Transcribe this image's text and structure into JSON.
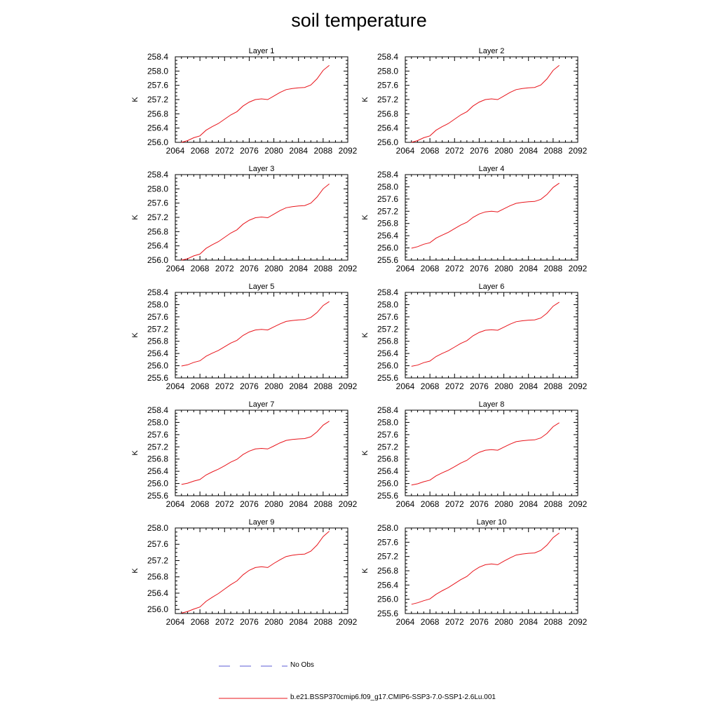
{
  "title": "soil temperature",
  "colors": {
    "model": "#e8141b",
    "obs": "#5b5bd6",
    "axis": "#000000"
  },
  "legend": {
    "obs_label": "No Obs",
    "model_label": "b.e21.BSSP370cmip6.f09_g17.CMIP6-SSP3-7.0-SSP1-2.6Lu.001"
  },
  "chart_data": [
    {
      "type": "line",
      "title": "Layer 1",
      "xlabel": "",
      "ylabel": "K",
      "xlim": [
        2064,
        2092
      ],
      "ylim": [
        256.0,
        258.4
      ],
      "xticks": [
        2064,
        2068,
        2072,
        2076,
        2080,
        2084,
        2088,
        2092
      ],
      "yticks": [
        256.0,
        256.4,
        256.8,
        257.2,
        257.6,
        258.0,
        258.4
      ],
      "ytick_labels": [
        "256.0",
        "256.4",
        "256.8",
        "257.2",
        "257.6",
        "258.0",
        "258.4"
      ],
      "series": [
        {
          "name": "b.e21.BSSP370cmip6.f09_g17.CMIP6-SSP3-7.0-SSP1-2.6Lu.001",
          "x": [
            2065,
            2066,
            2067,
            2068,
            2069,
            2070,
            2071,
            2072,
            2073,
            2074,
            2075,
            2076,
            2077,
            2078,
            2079,
            2080,
            2081,
            2082,
            2083,
            2084,
            2085,
            2086,
            2087,
            2088,
            2089
          ],
          "y": [
            256.0,
            256.05,
            256.13,
            256.18,
            256.34,
            256.44,
            256.53,
            256.65,
            256.77,
            256.86,
            257.02,
            257.13,
            257.2,
            257.22,
            257.2,
            257.3,
            257.4,
            257.48,
            257.51,
            257.53,
            257.54,
            257.61,
            257.78,
            258.02,
            258.16
          ]
        }
      ]
    },
    {
      "type": "line",
      "title": "Layer 2",
      "xlabel": "",
      "ylabel": "K",
      "xlim": [
        2064,
        2092
      ],
      "ylim": [
        256.0,
        258.4
      ],
      "xticks": [
        2064,
        2068,
        2072,
        2076,
        2080,
        2084,
        2088,
        2092
      ],
      "yticks": [
        256.0,
        256.4,
        256.8,
        257.2,
        257.6,
        258.0,
        258.4
      ],
      "ytick_labels": [
        "256.0",
        "256.4",
        "256.8",
        "257.2",
        "257.6",
        "258.0",
        "258.4"
      ],
      "series": [
        {
          "name": "b.e21.BSSP370cmip6.f09_g17.CMIP6-SSP3-7.0-SSP1-2.6Lu.001",
          "x": [
            2065,
            2066,
            2067,
            2068,
            2069,
            2070,
            2071,
            2072,
            2073,
            2074,
            2075,
            2076,
            2077,
            2078,
            2079,
            2080,
            2081,
            2082,
            2083,
            2084,
            2085,
            2086,
            2087,
            2088,
            2089
          ],
          "y": [
            256.0,
            256.05,
            256.13,
            256.18,
            256.34,
            256.44,
            256.53,
            256.65,
            256.77,
            256.86,
            257.02,
            257.13,
            257.2,
            257.22,
            257.2,
            257.3,
            257.4,
            257.48,
            257.51,
            257.53,
            257.54,
            257.61,
            257.78,
            258.02,
            258.16
          ]
        }
      ]
    },
    {
      "type": "line",
      "title": "Layer 3",
      "xlabel": "",
      "ylabel": "K",
      "xlim": [
        2064,
        2092
      ],
      "ylim": [
        256.0,
        258.4
      ],
      "xticks": [
        2064,
        2068,
        2072,
        2076,
        2080,
        2084,
        2088,
        2092
      ],
      "yticks": [
        256.0,
        256.4,
        256.8,
        257.2,
        257.6,
        258.0,
        258.4
      ],
      "ytick_labels": [
        "256.0",
        "256.4",
        "256.8",
        "257.2",
        "257.6",
        "258.0",
        "258.4"
      ],
      "series": [
        {
          "name": "b.e21.BSSP370cmip6.f09_g17.CMIP6-SSP3-7.0-SSP1-2.6Lu.001",
          "x": [
            2065,
            2066,
            2067,
            2068,
            2069,
            2070,
            2071,
            2072,
            2073,
            2074,
            2075,
            2076,
            2077,
            2078,
            2079,
            2080,
            2081,
            2082,
            2083,
            2084,
            2085,
            2086,
            2087,
            2088,
            2089
          ],
          "y": [
            256.0,
            256.04,
            256.12,
            256.17,
            256.33,
            256.43,
            256.52,
            256.64,
            256.76,
            256.85,
            257.01,
            257.12,
            257.19,
            257.21,
            257.19,
            257.29,
            257.39,
            257.47,
            257.5,
            257.52,
            257.53,
            257.6,
            257.77,
            258.0,
            258.14
          ]
        }
      ]
    },
    {
      "type": "line",
      "title": "Layer 4",
      "xlabel": "",
      "ylabel": "K",
      "xlim": [
        2064,
        2092
      ],
      "ylim": [
        255.6,
        258.4
      ],
      "xticks": [
        2064,
        2068,
        2072,
        2076,
        2080,
        2084,
        2088,
        2092
      ],
      "yticks": [
        255.6,
        256.0,
        256.4,
        256.8,
        257.2,
        257.6,
        258.0,
        258.4
      ],
      "ytick_labels": [
        "255.6",
        "256.0",
        "256.4",
        "256.8",
        "257.2",
        "257.6",
        "258.0",
        "258.4"
      ],
      "series": [
        {
          "name": "b.e21.BSSP370cmip6.f09_g17.CMIP6-SSP3-7.0-SSP1-2.6Lu.001",
          "x": [
            2065,
            2066,
            2067,
            2068,
            2069,
            2070,
            2071,
            2072,
            2073,
            2074,
            2075,
            2076,
            2077,
            2078,
            2079,
            2080,
            2081,
            2082,
            2083,
            2084,
            2085,
            2086,
            2087,
            2088,
            2089
          ],
          "y": [
            255.99,
            256.04,
            256.12,
            256.17,
            256.32,
            256.42,
            256.51,
            256.63,
            256.75,
            256.84,
            257.0,
            257.11,
            257.18,
            257.2,
            257.18,
            257.28,
            257.38,
            257.46,
            257.49,
            257.51,
            257.52,
            257.59,
            257.75,
            257.98,
            258.12
          ]
        }
      ]
    },
    {
      "type": "line",
      "title": "Layer 5",
      "xlabel": "",
      "ylabel": "K",
      "xlim": [
        2064,
        2092
      ],
      "ylim": [
        255.6,
        258.4
      ],
      "xticks": [
        2064,
        2068,
        2072,
        2076,
        2080,
        2084,
        2088,
        2092
      ],
      "yticks": [
        255.6,
        256.0,
        256.4,
        256.8,
        257.2,
        257.6,
        258.0,
        258.4
      ],
      "ytick_labels": [
        "255.6",
        "256.0",
        "256.4",
        "256.8",
        "257.2",
        "257.6",
        "258.0",
        "258.4"
      ],
      "series": [
        {
          "name": "b.e21.BSSP370cmip6.f09_g17.CMIP6-SSP3-7.0-SSP1-2.6Lu.001",
          "x": [
            2065,
            2066,
            2067,
            2068,
            2069,
            2070,
            2071,
            2072,
            2073,
            2074,
            2075,
            2076,
            2077,
            2078,
            2079,
            2080,
            2081,
            2082,
            2083,
            2084,
            2085,
            2086,
            2087,
            2088,
            2089
          ],
          "y": [
            255.99,
            256.03,
            256.11,
            256.16,
            256.31,
            256.41,
            256.5,
            256.62,
            256.74,
            256.83,
            256.99,
            257.1,
            257.17,
            257.19,
            257.17,
            257.27,
            257.37,
            257.45,
            257.48,
            257.5,
            257.51,
            257.58,
            257.74,
            257.97,
            258.1
          ]
        }
      ]
    },
    {
      "type": "line",
      "title": "Layer 6",
      "xlabel": "",
      "ylabel": "K",
      "xlim": [
        2064,
        2092
      ],
      "ylim": [
        255.6,
        258.4
      ],
      "xticks": [
        2064,
        2068,
        2072,
        2076,
        2080,
        2084,
        2088,
        2092
      ],
      "yticks": [
        255.6,
        256.0,
        256.4,
        256.8,
        257.2,
        257.6,
        258.0,
        258.4
      ],
      "ytick_labels": [
        "255.6",
        "256.0",
        "256.4",
        "256.8",
        "257.2",
        "257.6",
        "258.0",
        "258.4"
      ],
      "series": [
        {
          "name": "b.e21.BSSP370cmip6.f09_g17.CMIP6-SSP3-7.0-SSP1-2.6Lu.001",
          "x": [
            2065,
            2066,
            2067,
            2068,
            2069,
            2070,
            2071,
            2072,
            2073,
            2074,
            2075,
            2076,
            2077,
            2078,
            2079,
            2080,
            2081,
            2082,
            2083,
            2084,
            2085,
            2086,
            2087,
            2088,
            2089
          ],
          "y": [
            255.98,
            256.02,
            256.1,
            256.15,
            256.3,
            256.4,
            256.49,
            256.61,
            256.73,
            256.82,
            256.98,
            257.09,
            257.16,
            257.18,
            257.16,
            257.26,
            257.36,
            257.44,
            257.47,
            257.49,
            257.5,
            257.56,
            257.72,
            257.95,
            258.08
          ]
        }
      ]
    },
    {
      "type": "line",
      "title": "Layer 7",
      "xlabel": "",
      "ylabel": "K",
      "xlim": [
        2064,
        2092
      ],
      "ylim": [
        255.6,
        258.4
      ],
      "xticks": [
        2064,
        2068,
        2072,
        2076,
        2080,
        2084,
        2088,
        2092
      ],
      "yticks": [
        255.6,
        256.0,
        256.4,
        256.8,
        257.2,
        257.6,
        258.0,
        258.4
      ],
      "ytick_labels": [
        "255.6",
        "256.0",
        "256.4",
        "256.8",
        "257.2",
        "257.6",
        "258.0",
        "258.4"
      ],
      "series": [
        {
          "name": "b.e21.BSSP370cmip6.f09_g17.CMIP6-SSP3-7.0-SSP1-2.6Lu.001",
          "x": [
            2065,
            2066,
            2067,
            2068,
            2069,
            2070,
            2071,
            2072,
            2073,
            2074,
            2075,
            2076,
            2077,
            2078,
            2079,
            2080,
            2081,
            2082,
            2083,
            2084,
            2085,
            2086,
            2087,
            2088,
            2089
          ],
          "y": [
            255.97,
            256.01,
            256.08,
            256.13,
            256.28,
            256.38,
            256.47,
            256.58,
            256.7,
            256.79,
            256.95,
            257.06,
            257.13,
            257.15,
            257.13,
            257.23,
            257.33,
            257.41,
            257.44,
            257.46,
            257.47,
            257.53,
            257.69,
            257.91,
            258.04
          ]
        }
      ]
    },
    {
      "type": "line",
      "title": "Layer 8",
      "xlabel": "",
      "ylabel": "K",
      "xlim": [
        2064,
        2092
      ],
      "ylim": [
        255.6,
        258.4
      ],
      "xticks": [
        2064,
        2068,
        2072,
        2076,
        2080,
        2084,
        2088,
        2092
      ],
      "yticks": [
        255.6,
        256.0,
        256.4,
        256.8,
        257.2,
        257.6,
        258.0,
        258.4
      ],
      "ytick_labels": [
        "255.6",
        "256.0",
        "256.4",
        "256.8",
        "257.2",
        "257.6",
        "258.0",
        "258.4"
      ],
      "series": [
        {
          "name": "b.e21.BSSP370cmip6.f09_g17.CMIP6-SSP3-7.0-SSP1-2.6Lu.001",
          "x": [
            2065,
            2066,
            2067,
            2068,
            2069,
            2070,
            2071,
            2072,
            2073,
            2074,
            2075,
            2076,
            2077,
            2078,
            2079,
            2080,
            2081,
            2082,
            2083,
            2084,
            2085,
            2086,
            2087,
            2088,
            2089
          ],
          "y": [
            255.95,
            255.99,
            256.06,
            256.11,
            256.25,
            256.35,
            256.44,
            256.55,
            256.67,
            256.76,
            256.91,
            257.02,
            257.09,
            257.11,
            257.09,
            257.19,
            257.29,
            257.37,
            257.4,
            257.42,
            257.43,
            257.49,
            257.64,
            257.86,
            257.99
          ]
        }
      ]
    },
    {
      "type": "line",
      "title": "Layer 9",
      "xlabel": "",
      "ylabel": "K",
      "xlim": [
        2064,
        2092
      ],
      "ylim": [
        255.9,
        258.0
      ],
      "xticks": [
        2064,
        2068,
        2072,
        2076,
        2080,
        2084,
        2088,
        2092
      ],
      "yticks": [
        256.0,
        256.4,
        256.8,
        257.2,
        257.6,
        258.0
      ],
      "ytick_labels": [
        "256.0",
        "256.4",
        "256.8",
        "257.2",
        "257.6",
        "258.0"
      ],
      "series": [
        {
          "name": "b.e21.BSSP370cmip6.f09_g17.CMIP6-SSP3-7.0-SSP1-2.6Lu.001",
          "x": [
            2065,
            2066,
            2067,
            2068,
            2069,
            2070,
            2071,
            2072,
            2073,
            2074,
            2075,
            2076,
            2077,
            2078,
            2079,
            2080,
            2081,
            2082,
            2083,
            2084,
            2085,
            2086,
            2087,
            2088,
            2089
          ],
          "y": [
            255.91,
            255.95,
            256.01,
            256.06,
            256.2,
            256.3,
            256.39,
            256.5,
            256.61,
            256.7,
            256.85,
            256.96,
            257.03,
            257.05,
            257.03,
            257.13,
            257.22,
            257.3,
            257.33,
            257.35,
            257.36,
            257.43,
            257.58,
            257.79,
            257.92
          ]
        }
      ]
    },
    {
      "type": "line",
      "title": "Layer 10",
      "xlabel": "",
      "ylabel": "K",
      "xlim": [
        2064,
        2092
      ],
      "ylim": [
        255.6,
        258.0
      ],
      "xticks": [
        2064,
        2068,
        2072,
        2076,
        2080,
        2084,
        2088,
        2092
      ],
      "yticks": [
        255.6,
        256.0,
        256.4,
        256.8,
        257.2,
        257.6,
        258.0
      ],
      "ytick_labels": [
        "255.6",
        "256.0",
        "256.4",
        "256.8",
        "257.2",
        "257.6",
        "258.0"
      ],
      "series": [
        {
          "name": "b.e21.BSSP370cmip6.f09_g17.CMIP6-SSP3-7.0-SSP1-2.6Lu.001",
          "x": [
            2065,
            2066,
            2067,
            2068,
            2069,
            2070,
            2071,
            2072,
            2073,
            2074,
            2075,
            2076,
            2077,
            2078,
            2079,
            2080,
            2081,
            2082,
            2083,
            2084,
            2085,
            2086,
            2087,
            2088,
            2089
          ],
          "y": [
            255.86,
            255.9,
            255.96,
            256.01,
            256.14,
            256.24,
            256.33,
            256.44,
            256.55,
            256.64,
            256.79,
            256.9,
            256.97,
            256.99,
            256.97,
            257.07,
            257.16,
            257.24,
            257.27,
            257.29,
            257.3,
            257.37,
            257.52,
            257.73,
            257.86
          ]
        }
      ]
    }
  ]
}
